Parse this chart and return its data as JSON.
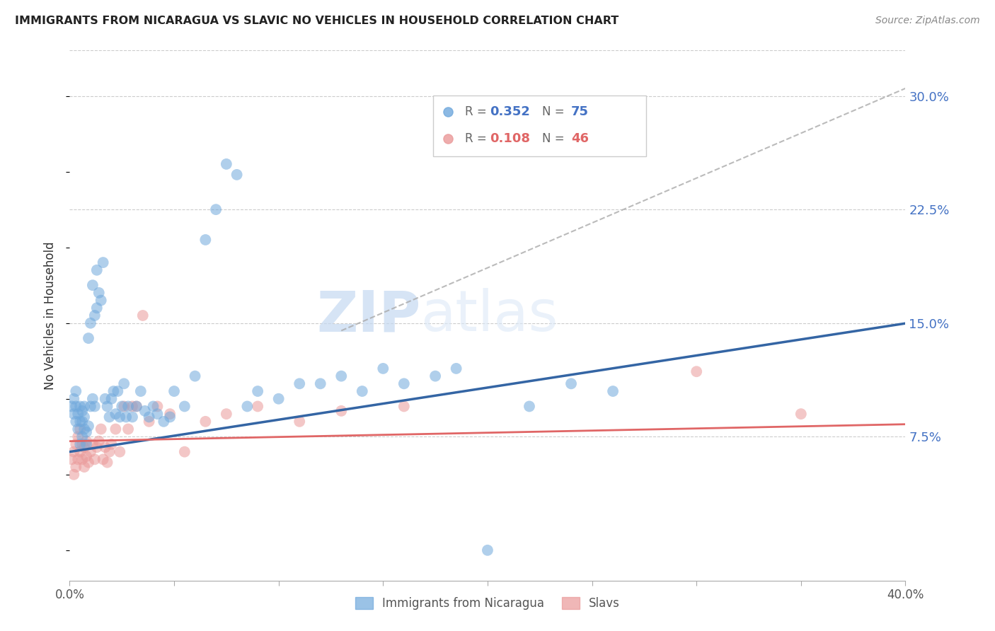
{
  "title": "IMMIGRANTS FROM NICARAGUA VS SLAVIC NO VEHICLES IN HOUSEHOLD CORRELATION CHART",
  "source": "Source: ZipAtlas.com",
  "ylabel": "No Vehicles in Household",
  "xlim": [
    0.0,
    0.4
  ],
  "ylim": [
    -0.02,
    0.33
  ],
  "xticks": [
    0.0,
    0.05,
    0.1,
    0.15,
    0.2,
    0.25,
    0.3,
    0.35,
    0.4
  ],
  "xticklabels": [
    "0.0%",
    "",
    "",
    "",
    "",
    "",
    "",
    "",
    "40.0%"
  ],
  "yticks_right": [
    0.075,
    0.15,
    0.225,
    0.3
  ],
  "ytick_right_labels": [
    "7.5%",
    "15.0%",
    "22.5%",
    "30.0%"
  ],
  "legend_r1": "0.352",
  "legend_n1": "75",
  "legend_r2": "0.108",
  "legend_n2": "46",
  "legend_label1": "Immigrants from Nicaragua",
  "legend_label2": "Slavs",
  "blue_color": "#6fa8dc",
  "pink_color": "#ea9999",
  "blue_line_color": "#3465a4",
  "pink_line_color": "#e06666",
  "watermark_zip": "ZIP",
  "watermark_atlas": "atlas",
  "grid_color": "#cccccc",
  "blue_line_intercept": 0.065,
  "blue_line_slope": 0.212,
  "pink_line_intercept": 0.072,
  "pink_line_slope": 0.028,
  "dashed_color": "#aaaaaa",
  "blue_scatter_x": [
    0.001,
    0.002,
    0.002,
    0.003,
    0.003,
    0.003,
    0.004,
    0.004,
    0.005,
    0.005,
    0.005,
    0.006,
    0.006,
    0.006,
    0.007,
    0.007,
    0.007,
    0.008,
    0.008,
    0.009,
    0.009,
    0.01,
    0.01,
    0.011,
    0.011,
    0.012,
    0.012,
    0.013,
    0.013,
    0.014,
    0.015,
    0.016,
    0.017,
    0.018,
    0.019,
    0.02,
    0.021,
    0.022,
    0.023,
    0.024,
    0.025,
    0.026,
    0.027,
    0.028,
    0.03,
    0.032,
    0.034,
    0.036,
    0.038,
    0.04,
    0.042,
    0.045,
    0.048,
    0.05,
    0.055,
    0.06,
    0.065,
    0.07,
    0.075,
    0.08,
    0.085,
    0.09,
    0.1,
    0.11,
    0.12,
    0.13,
    0.14,
    0.15,
    0.16,
    0.175,
    0.185,
    0.2,
    0.22,
    0.24,
    0.26
  ],
  "blue_scatter_y": [
    0.095,
    0.09,
    0.1,
    0.085,
    0.095,
    0.105,
    0.08,
    0.09,
    0.07,
    0.085,
    0.095,
    0.075,
    0.085,
    0.092,
    0.08,
    0.088,
    0.095,
    0.078,
    0.07,
    0.082,
    0.14,
    0.095,
    0.15,
    0.175,
    0.1,
    0.155,
    0.095,
    0.16,
    0.185,
    0.17,
    0.165,
    0.19,
    0.1,
    0.095,
    0.088,
    0.1,
    0.105,
    0.09,
    0.105,
    0.088,
    0.095,
    0.11,
    0.088,
    0.095,
    0.088,
    0.095,
    0.105,
    0.092,
    0.088,
    0.095,
    0.09,
    0.085,
    0.088,
    0.105,
    0.095,
    0.115,
    0.205,
    0.225,
    0.255,
    0.248,
    0.095,
    0.105,
    0.1,
    0.11,
    0.11,
    0.115,
    0.105,
    0.12,
    0.11,
    0.115,
    0.12,
    0.0,
    0.095,
    0.11,
    0.105
  ],
  "pink_scatter_x": [
    0.001,
    0.002,
    0.002,
    0.003,
    0.003,
    0.004,
    0.004,
    0.005,
    0.005,
    0.006,
    0.006,
    0.007,
    0.007,
    0.008,
    0.008,
    0.009,
    0.01,
    0.011,
    0.012,
    0.013,
    0.014,
    0.015,
    0.016,
    0.017,
    0.018,
    0.019,
    0.02,
    0.022,
    0.024,
    0.026,
    0.028,
    0.03,
    0.032,
    0.035,
    0.038,
    0.042,
    0.048,
    0.055,
    0.065,
    0.075,
    0.09,
    0.11,
    0.13,
    0.16,
    0.3,
    0.35
  ],
  "pink_scatter_y": [
    0.06,
    0.05,
    0.065,
    0.055,
    0.07,
    0.06,
    0.075,
    0.065,
    0.08,
    0.06,
    0.07,
    0.055,
    0.068,
    0.062,
    0.072,
    0.058,
    0.065,
    0.07,
    0.06,
    0.068,
    0.072,
    0.08,
    0.06,
    0.068,
    0.058,
    0.065,
    0.07,
    0.08,
    0.065,
    0.095,
    0.08,
    0.095,
    0.095,
    0.155,
    0.085,
    0.095,
    0.09,
    0.065,
    0.085,
    0.09,
    0.095,
    0.085,
    0.092,
    0.095,
    0.118,
    0.09
  ]
}
